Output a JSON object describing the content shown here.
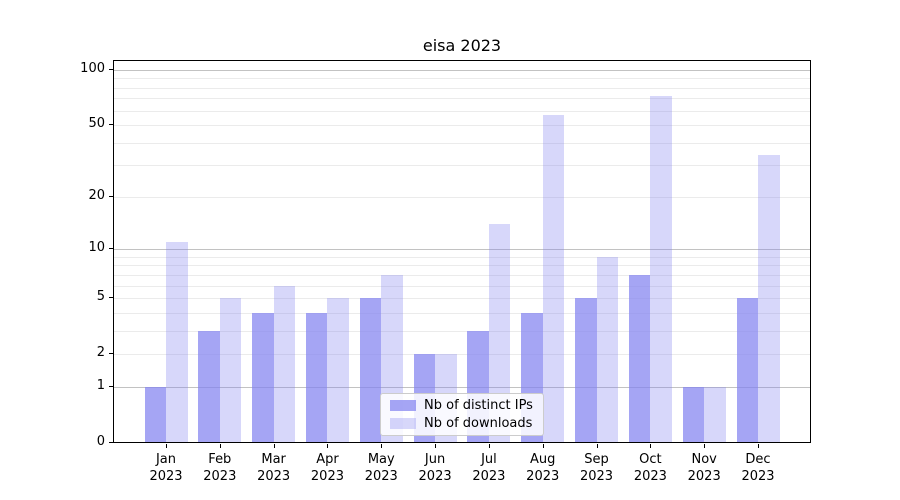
{
  "chart_data": {
    "type": "bar",
    "title": "eisa 2023",
    "categories": [
      "Jan",
      "Feb",
      "Mar",
      "Apr",
      "May",
      "Jun",
      "Jul",
      "Aug",
      "Sep",
      "Oct",
      "Nov",
      "Dec"
    ],
    "category_year": "2023",
    "series": [
      {
        "name": "Nb of distinct IPs",
        "color": "rgba(130,130,240,0.72)",
        "values": [
          1,
          3,
          4,
          4,
          5,
          2,
          3,
          4,
          5,
          7,
          1,
          5
        ]
      },
      {
        "name": "Nb of downloads",
        "color": "rgba(130,130,240,0.32)",
        "values": [
          11,
          5,
          6,
          5,
          7,
          2,
          14,
          57,
          9,
          72,
          1,
          34
        ]
      }
    ],
    "xlabel": "",
    "ylabel": "",
    "yscale": "log(1+y)",
    "ylim": [
      0,
      113
    ],
    "yticks": [
      0,
      1,
      2,
      5,
      10,
      20,
      50,
      100
    ],
    "grid": {
      "on": true,
      "major_lines": [
        1,
        10,
        100
      ],
      "minor_lines": [
        2,
        3,
        4,
        5,
        6,
        7,
        8,
        9,
        20,
        30,
        40,
        50,
        60,
        70,
        80,
        90
      ]
    },
    "legend_position": "lower center"
  }
}
